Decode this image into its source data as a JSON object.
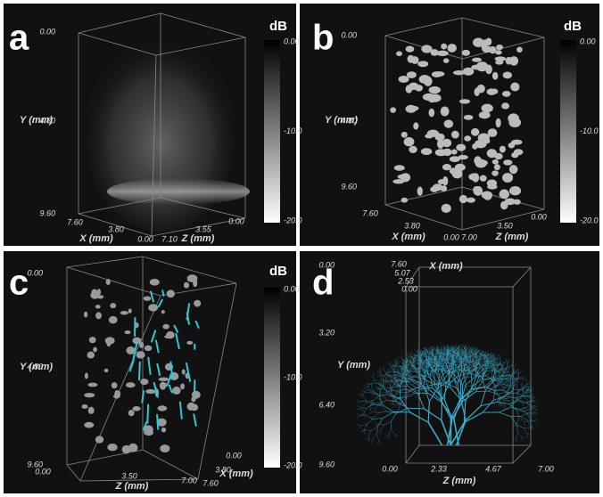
{
  "panels": [
    {
      "label": "a",
      "y_axis": {
        "title": "Y (mm)",
        "ticks": [
          "0.00",
          "4.80",
          "9.60"
        ]
      },
      "x_axis": {
        "title": "X (mm)",
        "ticks": [
          "7.60",
          "3.80",
          "0.00"
        ]
      },
      "z_axis": {
        "title": "Z (mm)",
        "ticks": [
          "7.10",
          "3.55",
          "0.00"
        ]
      },
      "colorbar": {
        "title": "dB",
        "ticks": [
          "0.00",
          "-10.0",
          "-20.0"
        ]
      }
    },
    {
      "label": "b",
      "y_axis": {
        "title": "Y (mm)",
        "ticks": [
          "0.00",
          "4.80",
          "9.60"
        ]
      },
      "x_axis": {
        "title": "X (mm)",
        "ticks": [
          "7.60",
          "3.80",
          "0.00"
        ]
      },
      "z_axis": {
        "title": "Z (mm)",
        "ticks": [
          "7.00",
          "3.50",
          "0.00"
        ]
      },
      "colorbar": {
        "title": "dB",
        "ticks": [
          "0.00",
          "-10.0",
          "-20.0"
        ]
      }
    },
    {
      "label": "c",
      "y_axis": {
        "title": "Y (mm)",
        "ticks": [
          "0.00",
          "4.80",
          "9.60"
        ]
      },
      "z_axis": {
        "title": "Z (mm)",
        "ticks": [
          "0.00",
          "3.50",
          "7.00"
        ]
      },
      "x_axis": {
        "title": "X (mm)",
        "ticks": [
          "7.60",
          "3.80",
          "0.00"
        ]
      },
      "colorbar": {
        "title": "dB",
        "ticks": [
          "0.00",
          "-10.0",
          "-20.0"
        ]
      }
    },
    {
      "label": "d",
      "y_axis": {
        "title": "Y (mm)",
        "ticks": [
          "0.00",
          "3.20",
          "6.40",
          "9.60"
        ]
      },
      "x_axis": {
        "title": "X (mm)",
        "ticks": [
          "7.60",
          "5.07",
          "2.53",
          "0.00"
        ]
      },
      "z_axis": {
        "title": "Z (mm)",
        "ticks": [
          "0.00",
          "2.33",
          "4.67",
          "7.00"
        ]
      }
    }
  ]
}
